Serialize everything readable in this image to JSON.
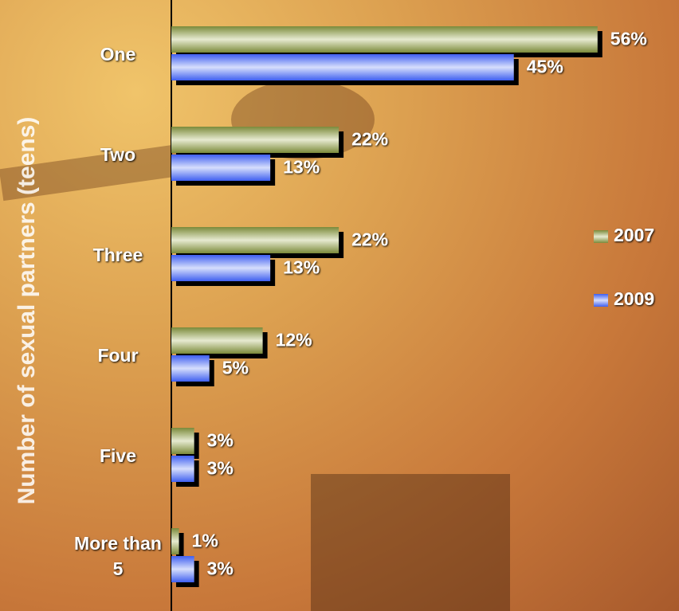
{
  "chart_data": {
    "type": "bar",
    "orientation": "horizontal",
    "y_label": "Number of sexual partners (teens)",
    "categories": [
      "One",
      "Two",
      "Three",
      "Four",
      "Five",
      "More than 5"
    ],
    "series": [
      {
        "name": "2007",
        "color": "#8a9a4a",
        "values": [
          56,
          22,
          22,
          12,
          3,
          1
        ],
        "value_labels": [
          "56%",
          "22%",
          "22%",
          "12%",
          "3%",
          "1%"
        ]
      },
      {
        "name": "2009",
        "color": "#4a6af0",
        "values": [
          45,
          13,
          13,
          5,
          3,
          3
        ],
        "value_labels": [
          "45%",
          "13%",
          "13%",
          "5%",
          "3%",
          "3%"
        ]
      }
    ],
    "legend": "right"
  }
}
